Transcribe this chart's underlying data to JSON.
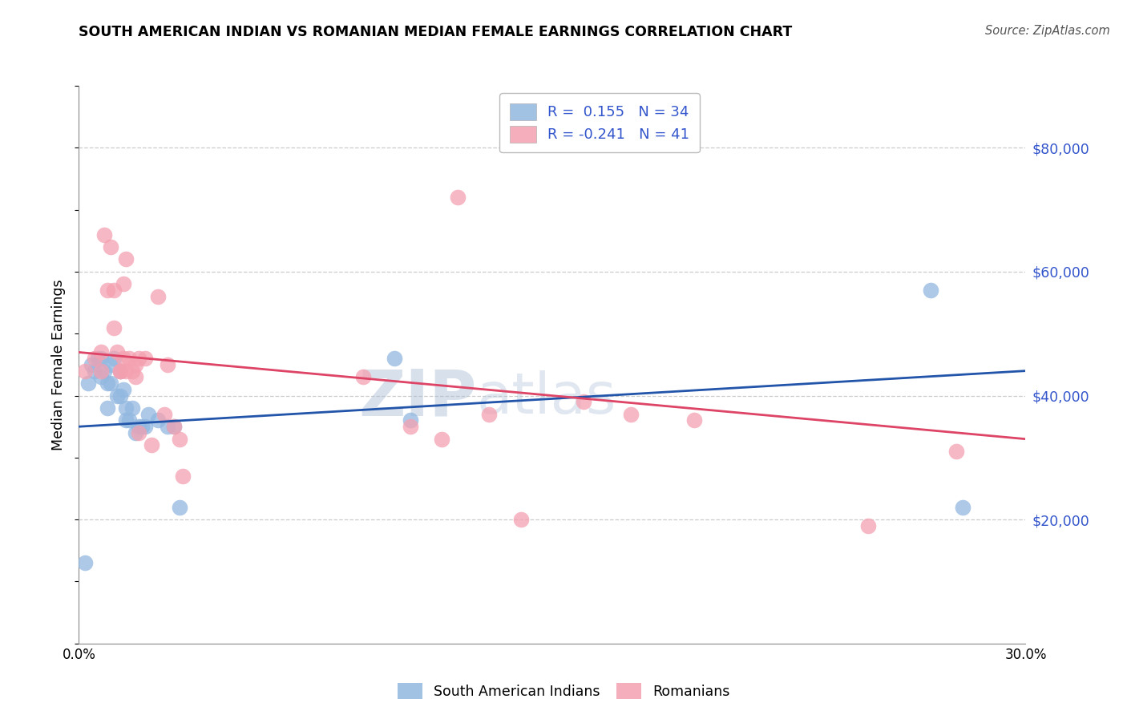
{
  "title": "SOUTH AMERICAN INDIAN VS ROMANIAN MEDIAN FEMALE EARNINGS CORRELATION CHART",
  "source": "Source: ZipAtlas.com",
  "ylabel": "Median Female Earnings",
  "ytick_labels": [
    "$20,000",
    "$40,000",
    "$60,000",
    "$80,000"
  ],
  "ytick_values": [
    20000,
    40000,
    60000,
    80000
  ],
  "xlim": [
    0.0,
    0.3
  ],
  "ylim": [
    0,
    90000
  ],
  "blue_color": "#92B8E0",
  "pink_color": "#F4A0B0",
  "blue_line_color": "#2255AA",
  "pink_line_color": "#DD4466",
  "watermark_zip": "ZIP",
  "watermark_atlas": "atlas",
  "blue_x": [
    0.002,
    0.003,
    0.004,
    0.005,
    0.006,
    0.007,
    0.007,
    0.008,
    0.009,
    0.009,
    0.01,
    0.01,
    0.011,
    0.012,
    0.013,
    0.013,
    0.014,
    0.015,
    0.015,
    0.016,
    0.017,
    0.018,
    0.019,
    0.02,
    0.021,
    0.022,
    0.025,
    0.028,
    0.03,
    0.032,
    0.1,
    0.105,
    0.27,
    0.28
  ],
  "blue_y": [
    13000,
    42000,
    45000,
    44000,
    46000,
    46000,
    43000,
    44000,
    42000,
    38000,
    42000,
    45000,
    46000,
    40000,
    44000,
    40000,
    41000,
    38000,
    36000,
    36000,
    38000,
    34000,
    35000,
    35000,
    35000,
    37000,
    36000,
    35000,
    35000,
    22000,
    46000,
    36000,
    57000,
    22000
  ],
  "pink_x": [
    0.002,
    0.005,
    0.007,
    0.007,
    0.008,
    0.009,
    0.01,
    0.011,
    0.011,
    0.012,
    0.013,
    0.013,
    0.014,
    0.014,
    0.015,
    0.015,
    0.016,
    0.017,
    0.018,
    0.018,
    0.019,
    0.019,
    0.021,
    0.023,
    0.025,
    0.027,
    0.028,
    0.03,
    0.032,
    0.033,
    0.09,
    0.105,
    0.115,
    0.12,
    0.13,
    0.14,
    0.16,
    0.175,
    0.195,
    0.25,
    0.278
  ],
  "pink_y": [
    44000,
    46000,
    47000,
    44000,
    66000,
    57000,
    64000,
    57000,
    51000,
    47000,
    44000,
    44000,
    58000,
    46000,
    62000,
    44000,
    46000,
    44000,
    45000,
    43000,
    46000,
    34000,
    46000,
    32000,
    56000,
    37000,
    45000,
    35000,
    33000,
    27000,
    43000,
    35000,
    33000,
    72000,
    37000,
    20000,
    39000,
    37000,
    36000,
    19000,
    31000
  ]
}
